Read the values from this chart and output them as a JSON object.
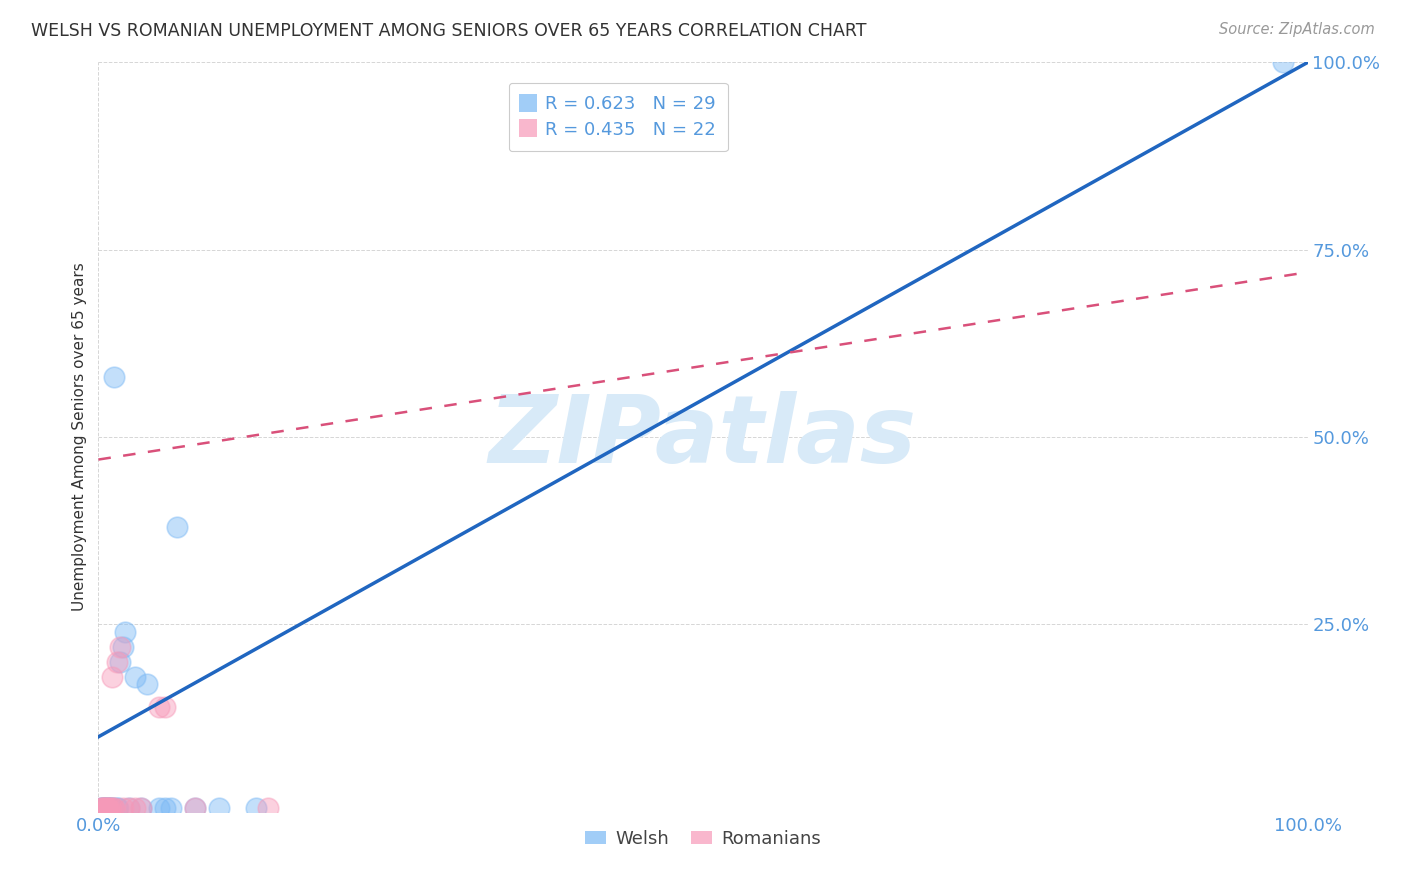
{
  "title": "WELSH VS ROMANIAN UNEMPLOYMENT AMONG SENIORS OVER 65 YEARS CORRELATION CHART",
  "source": "Source: ZipAtlas.com",
  "ylabel": "Unemployment Among Seniors over 65 years",
  "welsh_R": 0.623,
  "welsh_N": 29,
  "romanian_R": 0.435,
  "romanian_N": 22,
  "welsh_color": "#7ab8f5",
  "romanian_color": "#f799b8",
  "welsh_line_color": "#2066c0",
  "romanian_line_color": "#d9507a",
  "watermark_text": "ZIPatlas",
  "watermark_color": "#d8eaf8",
  "background_color": "#ffffff",
  "grid_color": "#cccccc",
  "tick_color": "#5599dd",
  "title_color": "#333333",
  "source_color": "#999999",
  "ylabel_color": "#333333",
  "welsh_line_x0": 0.0,
  "welsh_line_y0": 0.1,
  "welsh_line_x1": 1.0,
  "welsh_line_y1": 1.0,
  "romanian_line_x0": 0.0,
  "romanian_line_y0": 0.47,
  "romanian_line_x1": 1.0,
  "romanian_line_y1": 0.72,
  "welsh_x": [
    0.002,
    0.003,
    0.004,
    0.005,
    0.006,
    0.007,
    0.008,
    0.009,
    0.01,
    0.011,
    0.012,
    0.013,
    0.015,
    0.016,
    0.018,
    0.02,
    0.022,
    0.025,
    0.03,
    0.035,
    0.04,
    0.05,
    0.055,
    0.06,
    0.065,
    0.08,
    0.1,
    0.13,
    0.98
  ],
  "welsh_y": [
    0.005,
    0.005,
    0.005,
    0.005,
    0.005,
    0.005,
    0.005,
    0.005,
    0.005,
    0.005,
    0.005,
    0.58,
    0.005,
    0.005,
    0.2,
    0.22,
    0.24,
    0.005,
    0.18,
    0.005,
    0.17,
    0.005,
    0.005,
    0.005,
    0.38,
    0.005,
    0.005,
    0.005,
    1.0
  ],
  "romanian_x": [
    0.002,
    0.003,
    0.004,
    0.005,
    0.006,
    0.007,
    0.008,
    0.009,
    0.01,
    0.011,
    0.012,
    0.013,
    0.015,
    0.018,
    0.02,
    0.025,
    0.03,
    0.035,
    0.05,
    0.055,
    0.08,
    0.14
  ],
  "romanian_y": [
    0.005,
    0.005,
    0.005,
    0.005,
    0.005,
    0.005,
    0.005,
    0.005,
    0.005,
    0.18,
    0.005,
    0.005,
    0.2,
    0.22,
    0.005,
    0.005,
    0.005,
    0.005,
    0.14,
    0.14,
    0.005,
    0.005
  ],
  "xlim": [
    0.0,
    1.0
  ],
  "ylim": [
    0.0,
    1.0
  ],
  "ytick_positions": [
    0.0,
    0.25,
    0.5,
    0.75,
    1.0
  ],
  "ytick_labels": [
    "",
    "25.0%",
    "50.0%",
    "75.0%",
    "100.0%"
  ],
  "xtick_positions": [
    0.0,
    1.0
  ],
  "xtick_labels": [
    "0.0%",
    "100.0%"
  ]
}
